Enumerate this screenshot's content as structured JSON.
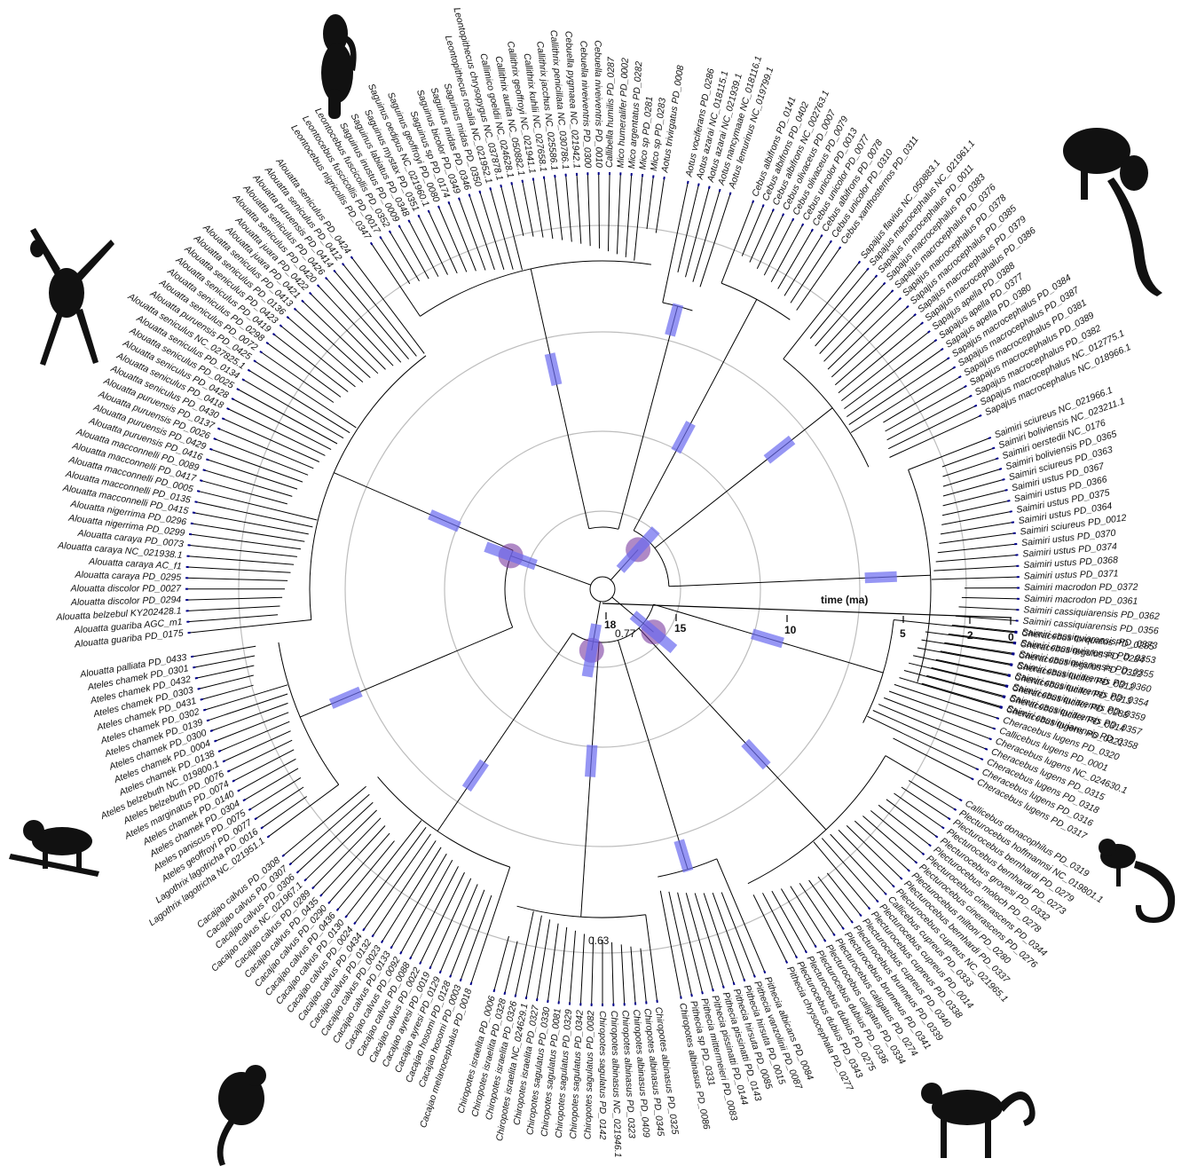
{
  "figure": {
    "axis_title": "time (ma)",
    "ticks": [
      "18",
      "15",
      "10",
      "5",
      "2",
      "0"
    ],
    "node_labels": [
      "0.77",
      "0.63"
    ],
    "colors": {
      "branch": "#000000",
      "hpd_bar": "#6b6bf0",
      "calibration_node": "#7a3aa0",
      "ring": "#bdbdbd",
      "tip_tick": "#00008b"
    }
  },
  "clades": [
    {
      "name": "Cheracebus",
      "tips": [
        "Cheracebus torquatus PD_0285",
        "Cheracebus regulus PD_0284",
        "Cheracebus regulus PD_0322",
        "Cheracebus lucifer PD_0312",
        "Cheracebus lucifer PD_0313",
        "Cheracebus lucifer PD_0288",
        "Cheracebus lucifer PD_0314",
        "Cheracebus lugens PD_0321",
        "Cheracebus lugens PD_0320",
        "Callicebus lugens PD_0001",
        "Cheracebus lugens NC_024630.1",
        "Cheracebus lugens PD_0315",
        "Cheracebus lugens PD_0318",
        "Cheracebus lugens PD_0316",
        "Cheracebus lugens PD_0317"
      ]
    },
    {
      "name": "Plecturocebus",
      "tips": [
        "Callicebus donacophilus PD_0319",
        "Plecturocebus hoffmannsi NC_019801.1",
        "Plecturocebus bernhardi PD_0279",
        "Plecturocebus bernhardi PD_0273",
        "Plecturocebus grovesi PD_0332",
        "Plecturocebus moloch PD_0278",
        "Plecturocebus cinerascens PD_0344",
        "Plecturocebus cinerascens PD_0276",
        "Plecturocebus miltoni PD_0280",
        "Plecturocebus bernhardi PD_0337",
        "Plecturocebus cupreus NC_021965.1",
        "Callicebus cupreus PD_0333",
        "Plecturocebus cupreus PD_0014",
        "Plecturocebus cupreus PD_0338",
        "Plecturocebus cupreus PD_0340",
        "Plecturocebus brunneus PD_0339",
        "Plecturocebus brunneus PD_0341",
        "Plecturocebus caligatus PD_0274",
        "Plecturocebus caligatus PD_0334",
        "Plecturocebus dubius PD_0336",
        "Plecturocebus dubius PD_0275",
        "Plecturocebus dubius PD_0343",
        "Pithecia chrysocephala PD_0277"
      ]
    },
    {
      "name": "Pithecia",
      "tips": [
        "Pithecia albicans PD_0084",
        "Pithecia vanzolinii PD_0087",
        "Pithecia hirsuta PD_0015",
        "Pithecia hirsuta PD_0085",
        "Pithecia pissinatti PD_0143",
        "Pithecia pissinatti PD_0144",
        "Pithecia mittermeieri PD_0083",
        "Pithecia sp PD_0331",
        "Chiropotes albinasus PD_0086"
      ]
    },
    {
      "name": "Chiropotes",
      "tips": [
        "Chiropotes albinasus PD_0325",
        "Chiropotes albinasus PD_0345",
        "Chiropotes albinasus PD_0409",
        "Chiropotes albinasus PD_0323",
        "Chiropotes albinasus NC_021946.1",
        "Chiropotes sagulatus PD_0142",
        "Chiropotes sagulatus PD_0082",
        "Chiropotes sagulatus PD_0342",
        "Chiropotes sagulatus PD_0329",
        "Chiropotes sagulatus PD_0081",
        "Chiropotes sagulatus PD_0330",
        "Chiropotes israelita PD_0327",
        "Chiropotes israelita NC_024629.1",
        "Chiropotes israelita PD_0326",
        "Chiropotes israelita PD_0328",
        "Chiropotes israelita PD_0006"
      ]
    },
    {
      "name": "Cacajao",
      "tips": [
        "Cacajao melanocephalus PD_0018",
        "Cacajao hosomi PD_0003",
        "Cacajao hosomi PD_0128",
        "Cacajao ayresi PD_0129",
        "Cacajao ayresi PD_0019",
        "Cacajao calvus PD_0022",
        "Cacajao calvus PD_0088",
        "Cacajao calvus PD_0092",
        "Cacajao calvus PD_0133",
        "Cacajao calvus PD_0023",
        "Cacajao calvus PD_0132",
        "Cacajao calvus PD_0434",
        "Cacajao calvus PD_0024",
        "Cacajao calvus PD_0130",
        "Cacajao calvus PD_0436",
        "Cacajao calvus PD_0290",
        "Cacajao calvus PD_0435",
        "Cacajao calvus PD_0289",
        "Cacajao calvus NC_021967.1",
        "Cacajao calvus PD_0306",
        "Cacajao calvus PD_0307",
        "Cacajao calvus PD_0308"
      ]
    },
    {
      "name": "Ateles",
      "tips": [
        "Lagothrix lagotricha NC_021951.1",
        "Lagothrix lagotricha PD_0016",
        "Ateles geoffroyi PD_0077",
        "Ateles paniscus PD_0075",
        "Ateles chamek PD_0304",
        "Ateles chamek PD_0140",
        "Ateles marginatus PD_0074",
        "Ateles belzebuth PD_0076",
        "Ateles belzebuth NC_019800.1",
        "Ateles chamek PD_0138",
        "Ateles chamek PD_0004",
        "Ateles chamek PD_0300",
        "Ateles chamek PD_0139",
        "Ateles chamek PD_0302",
        "Ateles chamek PD_0431",
        "Ateles chamek PD_0303",
        "Ateles chamek PD_0432",
        "Ateles chamek PD_0301",
        "Alouatta palliata PD_0433"
      ]
    },
    {
      "name": "Alouatta",
      "tips": [
        "Alouatta guariba PD_0175",
        "Alouatta guariba AGC_m1",
        "Alouatta belzebul KY202428.1",
        "Alouatta discolor PD_0294",
        "Alouatta discolor PD_0027",
        "Alouatta caraya PD_0295",
        "Alouatta caraya AC_f1",
        "Alouatta caraya NC_021938.1",
        "Alouatta caraya PD_0073",
        "Alouatta nigerrima PD_0299",
        "Alouatta nigerrima PD_0296",
        "Alouatta macconnelli PD_0415",
        "Alouatta macconnelli PD_0135",
        "Alouatta macconnelli PD_0005",
        "Alouatta macconnelli PD_0417",
        "Alouatta macconnelli PD_0089",
        "Alouatta puruensis PD_0416",
        "Alouatta puruensis PD_0429",
        "Alouatta puruensis PD_0026",
        "Alouatta puruensis PD_0137",
        "Alouatta seniculus PD_0430",
        "Alouatta seniculus PD_0418",
        "Alouatta seniculus PD_0428",
        "Alouatta seniculus PD_0025",
        "Alouatta seniculus PD_0134",
        "Alouatta seniculus NC_027825.1",
        "Alouatta puruensis PD_0425",
        "Alouatta seniculus PD_0072",
        "Alouatta seniculus PD_0298",
        "Alouatta seniculus PD_0419",
        "Alouatta seniculus PD_0423",
        "Alouatta seniculus PD_0136",
        "Alouatta seniculus PD_0413",
        "Alouatta juara PD_0421",
        "Alouatta juara PD_0422",
        "Alouatta seniculus PD_0420",
        "Alouatta seniculus PD_0426",
        "Alouatta puruensis PD_0414",
        "Alouatta seniculus PD_0412",
        "Alouatta seniculus PD_0424"
      ]
    },
    {
      "name": "Leontocebus",
      "tips": [
        "Leontocebus nigricollis PD_0347",
        "Leontocebus fuscicollis PD_0017",
        "Leontocebus fuscicollis PD_0352",
        "Saguinus inustus PD_0009",
        "Saguinus labiatus PD_0348",
        "Saguinus mystax PD_0351",
        "Saguinus oedipus NC_021960.1",
        "Saguinus geoffroyi PD_0080",
        "Saguinus sp PD_0174",
        "Saguinus bicolor PD_0349",
        "Saguinus midas PD_0346",
        "Saguinus midas PD_0350",
        "Leontopithecus rosalia NC_021952.1",
        "Leontopithecus chrysopygus NC_037878.1",
        "Callimico goeldii NC_024628.1",
        "Callithrix aurita NC_050882.1",
        "Callithrix geoffroyi NC_021941.1",
        "Callithrix kuhlii NC_027658.1",
        "Callithrix jacchus NC_025586.1",
        "Callithrix penicillata NC_030786.1",
        "Cebuella pygmaea NC_021942.1",
        "Cebuella niveiventris PD_0300",
        "Cebuella niveiventris PD_0010",
        "Callibella humilis PD_0287",
        "Mico humeralifer PD_0002",
        "Mico argentatus PD_0282",
        "Mico sp PD_0281",
        "Mico sp PD_0283",
        "Aotus trivirgatus PD_0008"
      ]
    },
    {
      "name": "Aotus",
      "tips": [
        "Aotus vociferans PD_0286",
        "Aotus azarai NC_018115.1",
        "Aotus azarai NC_021939.1",
        "Aotus nancymaae NC_018116.1",
        "Aotus lemurinus NC_019799.1"
      ]
    },
    {
      "name": "Cebus",
      "tips": [
        "Cebus albifrons PD_0141",
        "Cebus albifrons PD_0402",
        "Cebus albifrons NC_002763.1",
        "Cebus olivaceus PD_0007",
        "Cebus olivaceus PD_0079",
        "Cebus unicolor PD_0013",
        "Cebus unicolor PD_0077",
        "Cebus albifrons PD_0078",
        "Cebus unicolor PD_0310",
        "Cebus xanthosternos PD_0311"
      ]
    },
    {
      "name": "Sapajus",
      "tips": [
        "Sapajus flavius NC_050883.1",
        "Sapajus macrocephalus NC_021961.1",
        "Sapajus macrocephalus PD_0011",
        "Sapajus macrocephalus PD_0383",
        "Sapajus macrocephalus PD_0376",
        "Sapajus macrocephalus PD_0378",
        "Sapajus macrocephalus PD_0385",
        "Sapajus macrocephalus PD_0379",
        "Sapajus macrocephalus PD_0386",
        "Sapajus apella PD_0388",
        "Sapajus apella PD_0377",
        "Sapajus apella PD_0380",
        "Sapajus macrocephalus PD_0384",
        "Sapajus macrocephalus PD_0387",
        "Sapajus macrocephalus PD_0381",
        "Sapajus macrocephalus PD_0389",
        "Sapajus macrocephalus PD_0382",
        "Sapajus macrocephalus NC_012775.1",
        "Sapajus macrocephalus NC_018966.1"
      ]
    },
    {
      "name": "Saimiri",
      "tips": [
        "Saimiri sciureus NC_021966.1",
        "Saimiri boliviensis NC_023211.1",
        "Saimiri oerstedii NC_0176",
        "Saimiri boliviensis PD_0365",
        "Saimiri sciureus PD_0363",
        "Saimiri ustus PD_0367",
        "Saimiri ustus PD_0366",
        "Saimiri ustus PD_0375",
        "Saimiri ustus PD_0364",
        "Saimiri sciureus PD_0012",
        "Saimiri ustus PD_0370",
        "Saimiri ustus PD_0374",
        "Saimiri ustus PD_0368",
        "Saimiri ustus PD_0371",
        "Saimiri macrodon PD_0372",
        "Saimiri macrodon PD_0361",
        "Saimiri cassiquiarensis PD_0362",
        "Saimiri cassiquiarensis PD_0356",
        "Saimiri cassiquiarensis PD_0373",
        "Saimiri cassiquiarensis PD_0353",
        "Saimiri cassiquiarensis PD_0355",
        "Saimiri cassiquiarensis PD_0360",
        "Saimiri cassiquiarensis PD_0354",
        "Saimiri cassiquiarensis PD_0359",
        "Saimiri cassiquiarensis PD_0357",
        "Saimiri cassiquiarensis PD_0358"
      ]
    }
  ],
  "silhouettes": [
    {
      "name": "uakari-icon"
    },
    {
      "name": "titi-monkey-icon"
    },
    {
      "name": "spider-monkey-icon"
    },
    {
      "name": "howler-monkey-icon"
    },
    {
      "name": "squirrel-monkey-icon"
    },
    {
      "name": "tamarin-icon"
    },
    {
      "name": "capuchin-icon"
    }
  ]
}
